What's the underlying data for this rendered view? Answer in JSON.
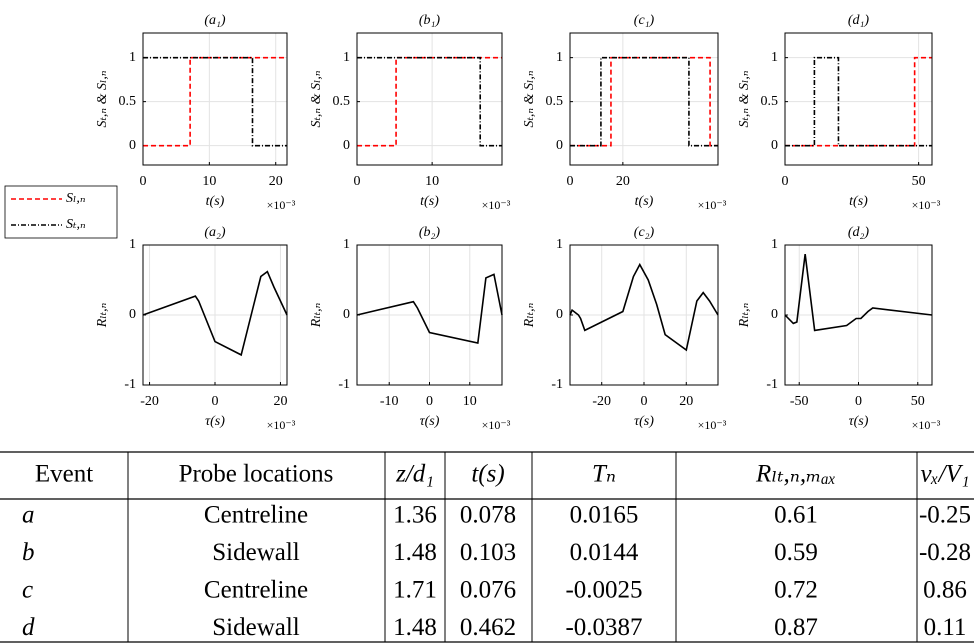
{
  "chart_data": [
    {
      "type": "line",
      "title": "(a₁)",
      "x_label": "t(s)",
      "x_multiplier": "×10⁻³",
      "y_label": "Sₜ,ₙ & Sₗ,ₙ",
      "xlim": [
        0,
        21.7
      ],
      "xticks": [
        0,
        10,
        20
      ],
      "ylim": [
        -0.22,
        1.28
      ],
      "yticks": [
        0,
        0.5,
        1
      ],
      "grid": true,
      "series": [
        {
          "name": "Sₗ,ₙ",
          "color": "#ff0000",
          "dash": "dashed",
          "x": [
            0,
            7.1,
            7.1,
            21.7
          ],
          "values": [
            0,
            0,
            1,
            1
          ]
        },
        {
          "name": "Sₜ,ₙ",
          "color": "#000000",
          "dash": "dashdot",
          "x": [
            0,
            16.5,
            16.5,
            21.7
          ],
          "values": [
            1,
            1,
            0,
            0
          ]
        }
      ]
    },
    {
      "type": "line",
      "title": "(b₁)",
      "x_label": "t(s)",
      "x_multiplier": "×10⁻³",
      "y_label": "Sₜ,ₙ & Sₗ,ₙ",
      "xlim": [
        0,
        19.3
      ],
      "xticks": [
        0,
        10
      ],
      "ylim": [
        -0.22,
        1.28
      ],
      "yticks": [
        0,
        0.5,
        1
      ],
      "grid": true,
      "series": [
        {
          "color": "#ff0000",
          "dash": "dashed",
          "x": [
            0,
            5.2,
            5.2,
            19.3
          ],
          "values": [
            0,
            0,
            1,
            1
          ]
        },
        {
          "color": "#000000",
          "dash": "dashdot",
          "x": [
            0,
            16.4,
            16.4,
            19.3
          ],
          "values": [
            1,
            1,
            0,
            0
          ]
        }
      ]
    },
    {
      "type": "line",
      "title": "(c₁)",
      "x_label": "t(s)",
      "x_multiplier": "×10⁻³",
      "y_label": "Sₜ,ₙ & Sₗ,ₙ",
      "xlim": [
        0,
        56
      ],
      "xticks": [
        0,
        20
      ],
      "ylim": [
        -0.22,
        1.28
      ],
      "yticks": [
        0,
        0.5,
        1
      ],
      "grid": true,
      "series": [
        {
          "color": "#ff0000",
          "dash": "dashed",
          "x": [
            0,
            15.5,
            15.5,
            53,
            53,
            56
          ],
          "values": [
            0,
            0,
            1,
            1,
            0,
            0
          ]
        },
        {
          "color": "#000000",
          "dash": "dashdot",
          "x": [
            0,
            11.7,
            11.7,
            45,
            45,
            56
          ],
          "values": [
            0,
            0,
            1,
            1,
            0,
            0
          ]
        }
      ]
    },
    {
      "type": "line",
      "title": "(d₁)",
      "x_label": "t(s)",
      "x_multiplier": "×10⁻³",
      "y_label": "Sₜ,ₙ & Sₗ,ₙ",
      "xlim": [
        0,
        55
      ],
      "xticks": [
        0,
        50
      ],
      "ylim": [
        -0.22,
        1.28
      ],
      "yticks": [
        0,
        0.5,
        1
      ],
      "grid": true,
      "series": [
        {
          "color": "#ff0000",
          "dash": "dashed",
          "x": [
            0,
            48.5,
            48.5,
            55
          ],
          "values": [
            0,
            0,
            1,
            1
          ]
        },
        {
          "color": "#000000",
          "dash": "dashdot",
          "x": [
            0,
            11,
            11,
            20,
            20,
            55
          ],
          "values": [
            0,
            0,
            1,
            1,
            0,
            0
          ]
        }
      ]
    },
    {
      "type": "line",
      "title": "(a₂)",
      "x_label": "τ(s)",
      "x_multiplier": "×10⁻³",
      "y_label": "Rₗₜ,ₙ",
      "xlim": [
        -22,
        22
      ],
      "xticks": [
        -20,
        0,
        20
      ],
      "ylim": [
        -1,
        1
      ],
      "yticks": [
        -1,
        0,
        1
      ],
      "grid": true,
      "series": [
        {
          "color": "#000000",
          "dash": "solid",
          "x": [
            -22,
            -6,
            -5,
            0,
            8,
            14,
            16,
            18,
            22
          ],
          "values": [
            0,
            0.27,
            0.2,
            -0.38,
            -0.57,
            0.55,
            0.62,
            0.4,
            0
          ]
        }
      ]
    },
    {
      "type": "line",
      "title": "(b₂)",
      "x_label": "τ(s)",
      "x_multiplier": "×10⁻³",
      "y_label": "Rₗₜ,ₙ",
      "xlim": [
        -18,
        18
      ],
      "xticks": [
        -10,
        0,
        10
      ],
      "ylim": [
        -1,
        1
      ],
      "yticks": [
        -1,
        0,
        1
      ],
      "grid": true,
      "series": [
        {
          "color": "#000000",
          "dash": "solid",
          "x": [
            -18,
            -4,
            -3,
            0,
            12,
            14,
            16,
            18
          ],
          "values": [
            0,
            0.19,
            0.1,
            -0.25,
            -0.4,
            0.53,
            0.58,
            0
          ]
        }
      ]
    },
    {
      "type": "line",
      "title": "(c₂)",
      "x_label": "τ(s)",
      "x_multiplier": "×10⁻³",
      "y_label": "Rₗₜ,ₙ",
      "xlim": [
        -35,
        35
      ],
      "xticks": [
        -20,
        0,
        20
      ],
      "ylim": [
        -1,
        1
      ],
      "yticks": [
        -1,
        0,
        1
      ],
      "grid": true,
      "series": [
        {
          "color": "#000000",
          "dash": "solid",
          "x": [
            -35,
            -34,
            -31,
            -30,
            -28,
            -10,
            -5,
            -2,
            2,
            6,
            10,
            20,
            25,
            28,
            31,
            35
          ],
          "values": [
            0,
            0.07,
            0,
            -0.05,
            -0.22,
            0.05,
            0.55,
            0.72,
            0.5,
            0.15,
            -0.28,
            -0.5,
            0.2,
            0.32,
            0.2,
            0
          ]
        }
      ]
    },
    {
      "type": "line",
      "title": "(d₂)",
      "x_label": "τ(s)",
      "x_multiplier": "×10⁻³",
      "y_label": "Rₗₜ,ₙ",
      "xlim": [
        -62,
        62
      ],
      "xticks": [
        -50,
        0,
        50
      ],
      "ylim": [
        -1,
        1
      ],
      "yticks": [
        -1,
        0,
        1
      ],
      "grid": true,
      "series": [
        {
          "color": "#000000",
          "dash": "solid",
          "x": [
            -62,
            -55,
            -52,
            -45,
            -37,
            -10,
            -2,
            2,
            8,
            12,
            62
          ],
          "values": [
            0,
            -0.12,
            -0.1,
            0.87,
            -0.22,
            -0.15,
            -0.05,
            -0.05,
            0.05,
            0.1,
            0
          ]
        }
      ]
    }
  ],
  "table": {
    "header": [
      "Event",
      "Probe locations",
      "z/d₁",
      "t(s)",
      "Tₙ",
      "Rₗₜ,ₙ,ₘₐₓ",
      "vₓ/V₁"
    ],
    "rows": [
      [
        "a",
        "Centreline",
        "1.36",
        "0.078",
        "0.0165",
        "0.61",
        "-0.25"
      ],
      [
        "b",
        "Sidewall",
        "1.48",
        "0.103",
        "0.0144",
        "0.59",
        "-0.28"
      ],
      [
        "c",
        "Centreline",
        "1.71",
        "0.076",
        "-0.0025",
        "0.72",
        "0.86"
      ],
      [
        "d",
        "Sidewall",
        "1.48",
        "0.462",
        "-0.0387",
        "0.87",
        "0.11"
      ]
    ]
  }
}
